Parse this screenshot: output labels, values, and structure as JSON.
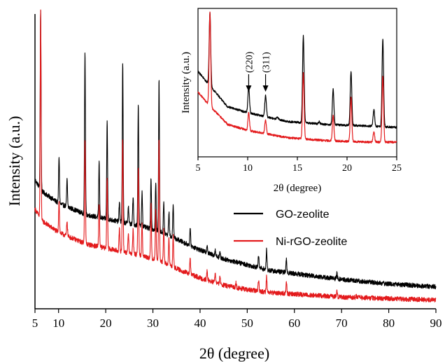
{
  "chart_data": [
    {
      "type": "line",
      "title": "",
      "xlabel": "2θ (degree)",
      "ylabel": "Intensity (a.u.)",
      "xlim": [
        5,
        90
      ],
      "ylim": [
        0,
        100
      ],
      "x_ticks": [
        5,
        10,
        20,
        30,
        40,
        50,
        60,
        70,
        80,
        90
      ],
      "y_ticks_shown": false,
      "grid": false,
      "legend_position": "center-right",
      "series": [
        {
          "name": "GO-zeolite",
          "color": "#000000",
          "baseline": [
            [
              5,
              44
            ],
            [
              6.5,
              40
            ],
            [
              10,
              36
            ],
            [
              16,
              32
            ],
            [
              22,
              30
            ],
            [
              28,
              28
            ],
            [
              32,
              26
            ],
            [
              36,
              23
            ],
            [
              40,
              20
            ],
            [
              45,
              17
            ],
            [
              50,
              15
            ],
            [
              55,
              13
            ],
            [
              60,
              12
            ],
            [
              70,
              10
            ],
            [
              80,
              8.5
            ],
            [
              90,
              7.5
            ]
          ],
          "peaks": [
            [
              6.2,
              102
            ],
            [
              10.1,
              52
            ],
            [
              11.8,
              44
            ],
            [
              15.6,
              88
            ],
            [
              18.6,
              50
            ],
            [
              20.3,
              64
            ],
            [
              23.6,
              84
            ],
            [
              26.9,
              70
            ],
            [
              31.3,
              78
            ],
            [
              22.9,
              36
            ],
            [
              24.8,
              35
            ],
            [
              25.8,
              38
            ],
            [
              27.7,
              40
            ],
            [
              29.6,
              45
            ],
            [
              30.6,
              43
            ],
            [
              32.3,
              36
            ],
            [
              33.4,
              33
            ],
            [
              34.3,
              36
            ],
            [
              37.9,
              27
            ],
            [
              41.5,
              22
            ],
            [
              43.2,
              20
            ],
            [
              44.2,
              19
            ],
            [
              47.6,
              16
            ],
            [
              52.4,
              18
            ],
            [
              54.1,
              20
            ],
            [
              58.3,
              17
            ],
            [
              69.0,
              12
            ],
            [
              73.1,
              9.5
            ]
          ]
        },
        {
          "name": "Ni-rGO-zeolite",
          "color": "#e31a1c",
          "baseline": [
            [
              5,
              34
            ],
            [
              6.5,
              30
            ],
            [
              10,
              26
            ],
            [
              16,
              22
            ],
            [
              22,
              20
            ],
            [
              28,
              18
            ],
            [
              32,
              16
            ],
            [
              36,
              13
            ],
            [
              40,
              10.5
            ],
            [
              45,
              8
            ],
            [
              50,
              6.5
            ],
            [
              55,
              5.5
            ],
            [
              60,
              5
            ],
            [
              70,
              4
            ],
            [
              80,
              3.5
            ],
            [
              90,
              3
            ]
          ],
          "peaks": [
            [
              6.2,
              102
            ],
            [
              10.1,
              37
            ],
            [
              11.8,
              30
            ],
            [
              15.6,
              58
            ],
            [
              18.6,
              36
            ],
            [
              20.3,
              45
            ],
            [
              23.6,
              58
            ],
            [
              26.9,
              49
            ],
            [
              31.3,
              58
            ],
            [
              22.9,
              27
            ],
            [
              24.8,
              26
            ],
            [
              25.8,
              27
            ],
            [
              27.7,
              29
            ],
            [
              29.6,
              36
            ],
            [
              30.6,
              34
            ],
            [
              32.3,
              27
            ],
            [
              33.4,
              24
            ],
            [
              34.3,
              25
            ],
            [
              37.9,
              17
            ],
            [
              41.5,
              13
            ],
            [
              43.2,
              12
            ],
            [
              44.2,
              11
            ],
            [
              47.6,
              9
            ],
            [
              52.4,
              10
            ],
            [
              54.1,
              11
            ],
            [
              58.3,
              9
            ],
            [
              69.0,
              6
            ],
            [
              73.1,
              4.5
            ]
          ]
        }
      ]
    },
    {
      "type": "line",
      "title": "",
      "xlabel": "2θ (degree)",
      "ylabel": "Intensity (a.u.)",
      "xlim": [
        5,
        25
      ],
      "ylim": [
        0,
        100
      ],
      "x_ticks": [
        5,
        10,
        15,
        20,
        25
      ],
      "y_ticks_shown": false,
      "grid": false,
      "annotations": [
        {
          "text": "(220)",
          "x": 10.1
        },
        {
          "text": "(311)",
          "x": 11.8
        }
      ],
      "series": [
        {
          "name": "GO-zeolite",
          "color": "#000000",
          "baseline": [
            [
              5,
              58
            ],
            [
              6,
              50
            ],
            [
              8,
              34
            ],
            [
              10,
              30
            ],
            [
              14,
              24
            ],
            [
              18,
              22
            ],
            [
              22,
              21
            ],
            [
              25,
              20
            ]
          ],
          "peaks": [
            [
              6.2,
              98
            ],
            [
              10.1,
              48
            ],
            [
              11.8,
              42
            ],
            [
              15.6,
              82
            ],
            [
              18.6,
              46
            ],
            [
              20.4,
              58
            ],
            [
              22.7,
              32
            ],
            [
              23.6,
              80
            ],
            [
              9.2,
              32
            ],
            [
              13.0,
              27
            ],
            [
              17.2,
              24
            ]
          ]
        },
        {
          "name": "Ni-rGO-zeolite",
          "color": "#e31a1c",
          "baseline": [
            [
              5,
              44
            ],
            [
              6,
              36
            ],
            [
              8,
              22
            ],
            [
              10,
              18
            ],
            [
              14,
              13
            ],
            [
              18,
              11
            ],
            [
              22,
              10
            ],
            [
              25,
              10
            ]
          ],
          "peaks": [
            [
              6.2,
              98
            ],
            [
              10.1,
              30
            ],
            [
              11.8,
              25
            ],
            [
              15.6,
              57
            ],
            [
              18.6,
              28
            ],
            [
              20.4,
              40
            ],
            [
              22.7,
              17
            ],
            [
              23.6,
              55
            ]
          ]
        }
      ]
    }
  ]
}
